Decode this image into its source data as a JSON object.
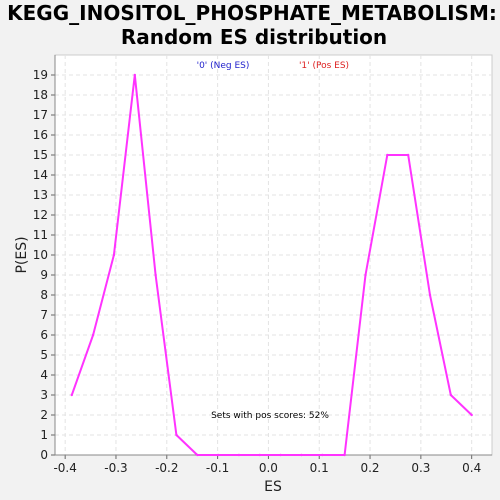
{
  "chart_data": {
    "type": "line",
    "title_lines": [
      "KEGG_INOSITOL_PHOSPHATE_METABOLISM:",
      "Random ES distribution"
    ],
    "xlabel": "ES",
    "ylabel": "P(ES)",
    "xlim": [
      -0.42,
      0.44
    ],
    "ylim": [
      0,
      20
    ],
    "x_ticks": [
      "-0.4",
      "-0.3",
      "-0.2",
      "-0.1",
      "0.0",
      "0.1",
      "0.2",
      "0.3",
      "0.4"
    ],
    "y_ticks": [
      "0",
      "1",
      "2",
      "3",
      "4",
      "5",
      "6",
      "7",
      "8",
      "9",
      "10",
      "11",
      "12",
      "13",
      "14",
      "15",
      "16",
      "17",
      "18",
      "19"
    ],
    "grid": true,
    "series": [
      {
        "color": "#ff33ff",
        "x": [
          -0.387,
          -0.345,
          -0.304,
          -0.263,
          -0.222,
          -0.181,
          -0.14,
          -0.099,
          -0.058,
          -0.017,
          0.024,
          0.065,
          0.106,
          0.15,
          0.191,
          0.234,
          0.275,
          0.318,
          0.359,
          0.4
        ],
        "y": [
          3,
          6,
          10,
          19,
          9,
          1,
          0,
          0,
          0,
          0,
          0,
          0,
          0,
          0,
          9,
          15,
          15,
          8,
          3,
          2
        ]
      }
    ],
    "legend": [
      {
        "label": "'0' (Neg ES)",
        "color": "#2222cc"
      },
      {
        "label": "'1' (Pos ES)",
        "color": "#dd2222"
      }
    ],
    "annotation": "Sets with pos scores: 52%"
  }
}
